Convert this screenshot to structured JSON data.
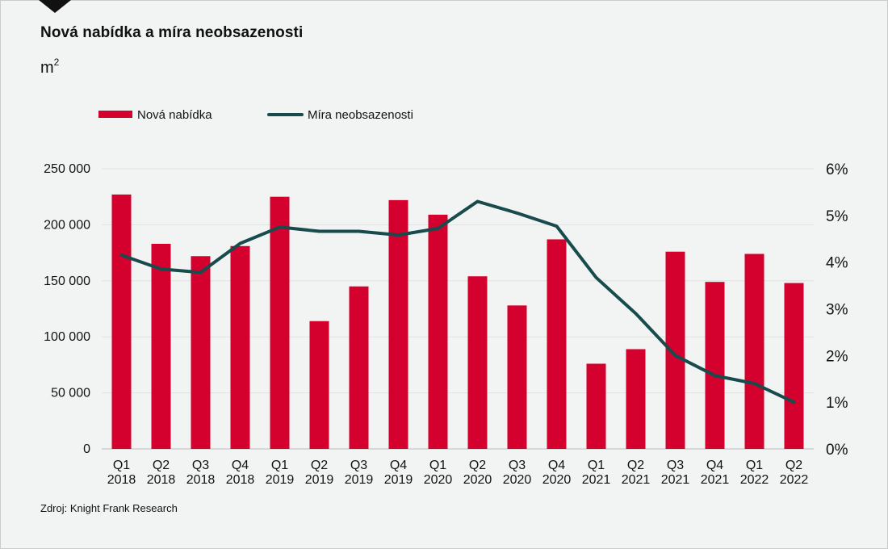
{
  "title": "Nová nabídka a míra neobsazenosti",
  "unit_main": "m",
  "unit_sup": "2",
  "source": "Zdroj: Knight Frank Research",
  "chart_data": {
    "type": "bar+line",
    "categories": [
      [
        "Q1",
        "2018"
      ],
      [
        "Q2",
        "2018"
      ],
      [
        "Q3",
        "2018"
      ],
      [
        "Q4",
        "2018"
      ],
      [
        "Q1",
        "2019"
      ],
      [
        "Q2",
        "2019"
      ],
      [
        "Q3",
        "2019"
      ],
      [
        "Q4",
        "2019"
      ],
      [
        "Q1",
        "2020"
      ],
      [
        "Q2",
        "2020"
      ],
      [
        "Q3",
        "2020"
      ],
      [
        "Q4",
        "2020"
      ],
      [
        "Q1",
        "2021"
      ],
      [
        "Q2",
        "2021"
      ],
      [
        "Q3",
        "2021"
      ],
      [
        "Q4",
        "2021"
      ],
      [
        "Q1",
        "2022"
      ],
      [
        "Q2",
        "2022"
      ]
    ],
    "series": [
      {
        "name": "Nová nabídka",
        "type": "bar",
        "axis": "left",
        "color": "#d4002e",
        "values": [
          227000,
          183000,
          172000,
          181000,
          225000,
          114000,
          145000,
          222000,
          209000,
          154000,
          128000,
          187000,
          76000,
          89000,
          176000,
          149000,
          174000,
          148000
        ]
      },
      {
        "name": "Míra neobsazenosti",
        "type": "line",
        "axis": "right",
        "color": "#174b4c",
        "values": [
          4.15,
          3.85,
          3.78,
          4.4,
          4.75,
          4.66,
          4.66,
          4.58,
          4.72,
          5.3,
          5.05,
          4.77,
          3.67,
          2.9,
          2.0,
          1.57,
          1.4,
          1.0
        ]
      }
    ],
    "y_left": {
      "range": [
        0,
        250000
      ],
      "ticks": [
        0,
        50000,
        100000,
        150000,
        200000,
        250000
      ],
      "tick_labels": [
        "0",
        "50 000",
        "100 000",
        "150 000",
        "200 000",
        "250 000"
      ]
    },
    "y_right": {
      "range": [
        0,
        6
      ],
      "ticks": [
        0,
        1,
        2,
        3,
        4,
        5,
        6
      ],
      "tick_labels": [
        "0%",
        "1%",
        "2%",
        "3%",
        "4%",
        "5%",
        "6%"
      ]
    },
    "grid": true,
    "legend_position": "top-left"
  }
}
